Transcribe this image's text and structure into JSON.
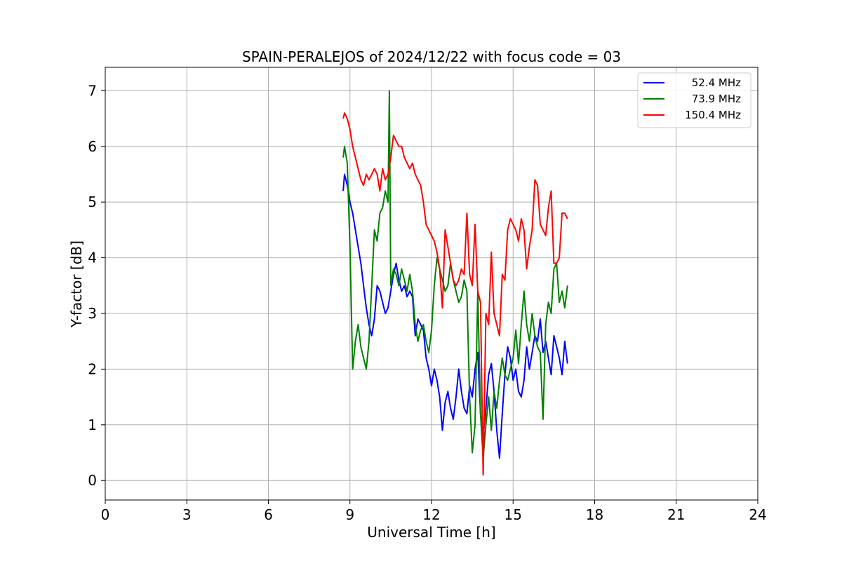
{
  "chart_data": {
    "type": "line",
    "title": "SPAIN-PERALEJOS of 2024/12/22 with focus code = 03",
    "xlabel": "Universal Time [h]",
    "ylabel": "Y-factor [dB]",
    "xlim": [
      0,
      24
    ],
    "ylim": [
      -0.35,
      7.42
    ],
    "x_ticks": [
      "0",
      "3",
      "6",
      "9",
      "12",
      "15",
      "18",
      "21",
      "24"
    ],
    "y_ticks": [
      "0",
      "1",
      "2",
      "3",
      "4",
      "5",
      "6",
      "7"
    ],
    "grid": true,
    "legend_position": "top-right",
    "series": [
      {
        "name": "52.4 MHz",
        "color": "#0000ff",
        "x": [
          8.75,
          8.8,
          8.9,
          9.0,
          9.1,
          9.2,
          9.3,
          9.4,
          9.5,
          9.6,
          9.7,
          9.8,
          9.9,
          10.0,
          10.1,
          10.2,
          10.3,
          10.4,
          10.5,
          10.6,
          10.7,
          10.8,
          10.9,
          11.0,
          11.1,
          11.2,
          11.3,
          11.4,
          11.5,
          11.6,
          11.7,
          11.8,
          11.9,
          12.0,
          12.1,
          12.2,
          12.3,
          12.4,
          12.5,
          12.6,
          12.7,
          12.8,
          12.9,
          13.0,
          13.1,
          13.2,
          13.3,
          13.4,
          13.5,
          13.6,
          13.7,
          13.8,
          13.9,
          14.0,
          14.1,
          14.2,
          14.3,
          14.4,
          14.5,
          14.6,
          14.7,
          14.8,
          14.9,
          15.0,
          15.1,
          15.2,
          15.3,
          15.4,
          15.5,
          15.6,
          15.7,
          15.8,
          15.9,
          16.0,
          16.1,
          16.2,
          16.3,
          16.4,
          16.5,
          16.6,
          16.7,
          16.8,
          16.9,
          17.0
        ],
        "y": [
          5.2,
          5.5,
          5.3,
          5.0,
          4.8,
          4.5,
          4.2,
          3.9,
          3.5,
          3.1,
          2.8,
          2.6,
          2.9,
          3.5,
          3.4,
          3.2,
          3.0,
          3.1,
          3.4,
          3.7,
          3.9,
          3.6,
          3.4,
          3.5,
          3.3,
          3.4,
          3.3,
          2.6,
          2.9,
          2.8,
          2.7,
          2.2,
          2.0,
          1.7,
          2.0,
          1.8,
          1.5,
          0.9,
          1.4,
          1.6,
          1.3,
          1.1,
          1.5,
          2.0,
          1.6,
          1.3,
          1.2,
          1.7,
          1.5,
          2.0,
          2.3,
          1.2,
          0.8,
          1.3,
          1.9,
          2.1,
          1.6,
          0.9,
          0.4,
          1.2,
          1.9,
          2.4,
          2.2,
          1.8,
          2.0,
          1.6,
          1.5,
          1.8,
          2.4,
          2.0,
          2.3,
          2.6,
          2.5,
          2.9,
          2.3,
          2.5,
          2.2,
          1.9,
          2.6,
          2.4,
          2.2,
          1.9,
          2.5,
          2.1
        ]
      },
      {
        "name": "73.9 MHz",
        "color": "#008000",
        "x": [
          8.75,
          8.8,
          8.9,
          9.0,
          9.1,
          9.2,
          9.3,
          9.4,
          9.5,
          9.6,
          9.7,
          9.8,
          9.9,
          10.0,
          10.1,
          10.2,
          10.3,
          10.4,
          10.45,
          10.5,
          10.6,
          10.7,
          10.8,
          10.9,
          11.0,
          11.1,
          11.2,
          11.3,
          11.4,
          11.5,
          11.6,
          11.7,
          11.8,
          11.9,
          12.0,
          12.1,
          12.2,
          12.3,
          12.4,
          12.5,
          12.6,
          12.7,
          12.8,
          12.9,
          13.0,
          13.1,
          13.2,
          13.3,
          13.4,
          13.5,
          13.6,
          13.7,
          13.8,
          13.9,
          14.0,
          14.1,
          14.2,
          14.3,
          14.4,
          14.5,
          14.6,
          14.7,
          14.8,
          14.9,
          15.0,
          15.1,
          15.2,
          15.3,
          15.4,
          15.5,
          15.6,
          15.7,
          15.8,
          15.9,
          16.0,
          16.1,
          16.2,
          16.3,
          16.4,
          16.5,
          16.6,
          16.7,
          16.8,
          16.9,
          17.0
        ],
        "y": [
          5.8,
          6.0,
          5.7,
          4.2,
          2.0,
          2.5,
          2.8,
          2.4,
          2.2,
          2.0,
          2.5,
          3.5,
          4.5,
          4.3,
          4.8,
          4.9,
          5.2,
          5.0,
          7.0,
          3.5,
          3.8,
          3.7,
          3.5,
          3.8,
          3.6,
          3.4,
          3.7,
          3.4,
          2.8,
          2.5,
          2.7,
          2.8,
          2.5,
          2.3,
          2.7,
          3.5,
          4.0,
          3.8,
          3.6,
          3.4,
          3.5,
          3.9,
          3.6,
          3.4,
          3.2,
          3.3,
          3.6,
          3.4,
          1.5,
          0.5,
          1.0,
          3.4,
          1.2,
          0.4,
          1.0,
          1.5,
          0.9,
          1.6,
          1.3,
          1.8,
          2.2,
          1.9,
          1.8,
          2.0,
          2.2,
          2.7,
          2.1,
          2.8,
          3.4,
          2.8,
          2.5,
          3.0,
          2.6,
          2.4,
          2.3,
          1.1,
          2.8,
          3.2,
          3.0,
          3.8,
          3.9,
          3.2,
          3.4,
          3.1,
          3.5
        ]
      },
      {
        "name": "150.4 MHz",
        "color": "#ff0000",
        "x": [
          8.75,
          8.8,
          8.9,
          9.0,
          9.1,
          9.2,
          9.3,
          9.4,
          9.5,
          9.6,
          9.7,
          9.8,
          9.9,
          10.0,
          10.1,
          10.2,
          10.3,
          10.4,
          10.5,
          10.6,
          10.7,
          10.8,
          10.9,
          11.0,
          11.1,
          11.2,
          11.3,
          11.4,
          11.5,
          11.6,
          11.7,
          11.8,
          11.9,
          12.0,
          12.1,
          12.2,
          12.3,
          12.4,
          12.5,
          12.6,
          12.7,
          12.8,
          12.9,
          13.0,
          13.1,
          13.2,
          13.3,
          13.4,
          13.5,
          13.6,
          13.7,
          13.8,
          13.9,
          14.0,
          14.1,
          14.2,
          14.3,
          14.4,
          14.5,
          14.6,
          14.7,
          14.8,
          14.9,
          15.0,
          15.1,
          15.2,
          15.3,
          15.4,
          15.5,
          15.6,
          15.7,
          15.8,
          15.9,
          16.0,
          16.1,
          16.2,
          16.3,
          16.4,
          16.5,
          16.6,
          16.7,
          16.8,
          16.9,
          17.0
        ],
        "y": [
          6.5,
          6.6,
          6.5,
          6.3,
          6.0,
          5.8,
          5.6,
          5.4,
          5.3,
          5.5,
          5.4,
          5.5,
          5.6,
          5.5,
          5.2,
          5.6,
          5.4,
          5.5,
          5.8,
          6.2,
          6.1,
          6.0,
          6.0,
          5.8,
          5.7,
          5.6,
          5.7,
          5.5,
          5.4,
          5.3,
          5.0,
          4.6,
          4.5,
          4.4,
          4.3,
          4.1,
          3.8,
          3.1,
          4.5,
          4.2,
          3.9,
          3.6,
          3.5,
          3.6,
          3.8,
          3.7,
          4.8,
          3.7,
          3.5,
          4.6,
          3.4,
          3.2,
          0.1,
          3.0,
          2.8,
          4.1,
          3.0,
          2.8,
          2.6,
          3.7,
          3.6,
          4.5,
          4.7,
          4.6,
          4.5,
          4.3,
          4.7,
          4.5,
          3.8,
          4.2,
          4.5,
          5.4,
          5.3,
          4.6,
          4.5,
          4.4,
          4.9,
          5.2,
          3.9,
          3.9,
          4.0,
          4.8,
          4.8,
          4.7
        ]
      }
    ]
  }
}
